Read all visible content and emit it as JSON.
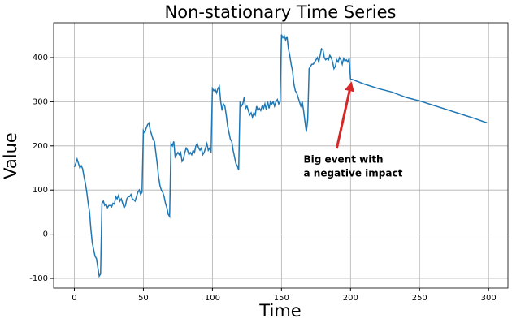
{
  "chart_data": {
    "type": "line",
    "title": "Non-stationary Time Series",
    "x_label": "Time",
    "y_label": "Value",
    "x": [
      0,
      1,
      2,
      3,
      4,
      5,
      6,
      7,
      8,
      9,
      10,
      11,
      12,
      13,
      14,
      15,
      16,
      17,
      18,
      19,
      20,
      21,
      22,
      23,
      24,
      25,
      26,
      27,
      28,
      29,
      30,
      31,
      32,
      33,
      34,
      35,
      36,
      37,
      38,
      39,
      40,
      41,
      42,
      43,
      44,
      45,
      46,
      47,
      48,
      49,
      50,
      51,
      52,
      53,
      54,
      55,
      56,
      57,
      58,
      59,
      60,
      61,
      62,
      63,
      64,
      65,
      66,
      67,
      68,
      69,
      70,
      71,
      72,
      73,
      74,
      75,
      76,
      77,
      78,
      79,
      80,
      81,
      82,
      83,
      84,
      85,
      86,
      87,
      88,
      89,
      90,
      91,
      92,
      93,
      94,
      95,
      96,
      97,
      98,
      99,
      100,
      101,
      102,
      103,
      104,
      105,
      106,
      107,
      108,
      109,
      110,
      111,
      112,
      113,
      114,
      115,
      116,
      117,
      118,
      119,
      120,
      121,
      122,
      123,
      124,
      125,
      126,
      127,
      128,
      129,
      130,
      131,
      132,
      133,
      134,
      135,
      136,
      137,
      138,
      139,
      140,
      141,
      142,
      143,
      144,
      145,
      146,
      147,
      148,
      149,
      150,
      151,
      152,
      153,
      154,
      155,
      156,
      157,
      158,
      159,
      160,
      161,
      162,
      163,
      164,
      165,
      166,
      167,
      168,
      169,
      170,
      171,
      172,
      173,
      174,
      175,
      176,
      177,
      178,
      179,
      180,
      181,
      182,
      183,
      184,
      185,
      186,
      187,
      188,
      189,
      190,
      191,
      192,
      193,
      194,
      195,
      196,
      197,
      198,
      199,
      200,
      210,
      220,
      230,
      240,
      250,
      260,
      270,
      280,
      290,
      299
    ],
    "series": [
      {
        "name": "Value",
        "color": "#1f77b4",
        "values": [
          152,
          160,
          170,
          160,
          150,
          155,
          148,
          130,
          115,
          95,
          70,
          50,
          10,
          -20,
          -35,
          -50,
          -55,
          -75,
          -95,
          -90,
          70,
          75,
          65,
          68,
          60,
          65,
          65,
          62,
          70,
          68,
          85,
          80,
          88,
          75,
          80,
          70,
          60,
          65,
          80,
          85,
          85,
          90,
          80,
          78,
          75,
          85,
          95,
          100,
          90,
          95,
          235,
          230,
          240,
          248,
          252,
          235,
          225,
          215,
          210,
          185,
          160,
          130,
          110,
          100,
          95,
          85,
          70,
          60,
          45,
          40,
          205,
          200,
          210,
          175,
          180,
          185,
          180,
          185,
          165,
          170,
          185,
          195,
          190,
          180,
          185,
          180,
          190,
          185,
          200,
          205,
          195,
          190,
          195,
          180,
          185,
          195,
          205,
          190,
          195,
          185,
          330,
          325,
          328,
          320,
          330,
          335,
          300,
          280,
          295,
          290,
          270,
          245,
          230,
          215,
          210,
          190,
          175,
          160,
          155,
          145,
          300,
          290,
          295,
          310,
          285,
          290,
          280,
          270,
          275,
          265,
          275,
          270,
          290,
          280,
          285,
          280,
          290,
          285,
          295,
          282,
          300,
          285,
          300,
          295,
          300,
          290,
          300,
          305,
          295,
          300,
          452,
          445,
          450,
          440,
          448,
          420,
          405,
          385,
          370,
          340,
          325,
          320,
          310,
          300,
          290,
          300,
          280,
          255,
          232,
          260,
          375,
          380,
          385,
          385,
          390,
          395,
          400,
          390,
          405,
          420,
          418,
          400,
          395,
          398,
          395,
          405,
          400,
          390,
          375,
          380,
          395,
          390,
          400,
          395,
          385,
          398,
          392,
          395,
          390,
          398,
          352,
          340,
          330,
          322,
          310,
          302,
          292,
          282,
          272,
          262,
          252
        ]
      }
    ],
    "xlim": [
      -15,
      314
    ],
    "ylim": [
      -122,
      479
    ],
    "xticks": [
      0,
      50,
      100,
      150,
      200,
      250,
      300
    ],
    "yticks": [
      -100,
      0,
      100,
      200,
      300,
      400
    ],
    "grid": true,
    "annotation": {
      "text_lines": [
        "Big event with",
        "a negative impact"
      ],
      "x": 166,
      "y": 168,
      "arrow_from": [
        190,
        194
      ],
      "arrow_to": [
        200,
        350
      ],
      "color": "#d62728"
    }
  }
}
